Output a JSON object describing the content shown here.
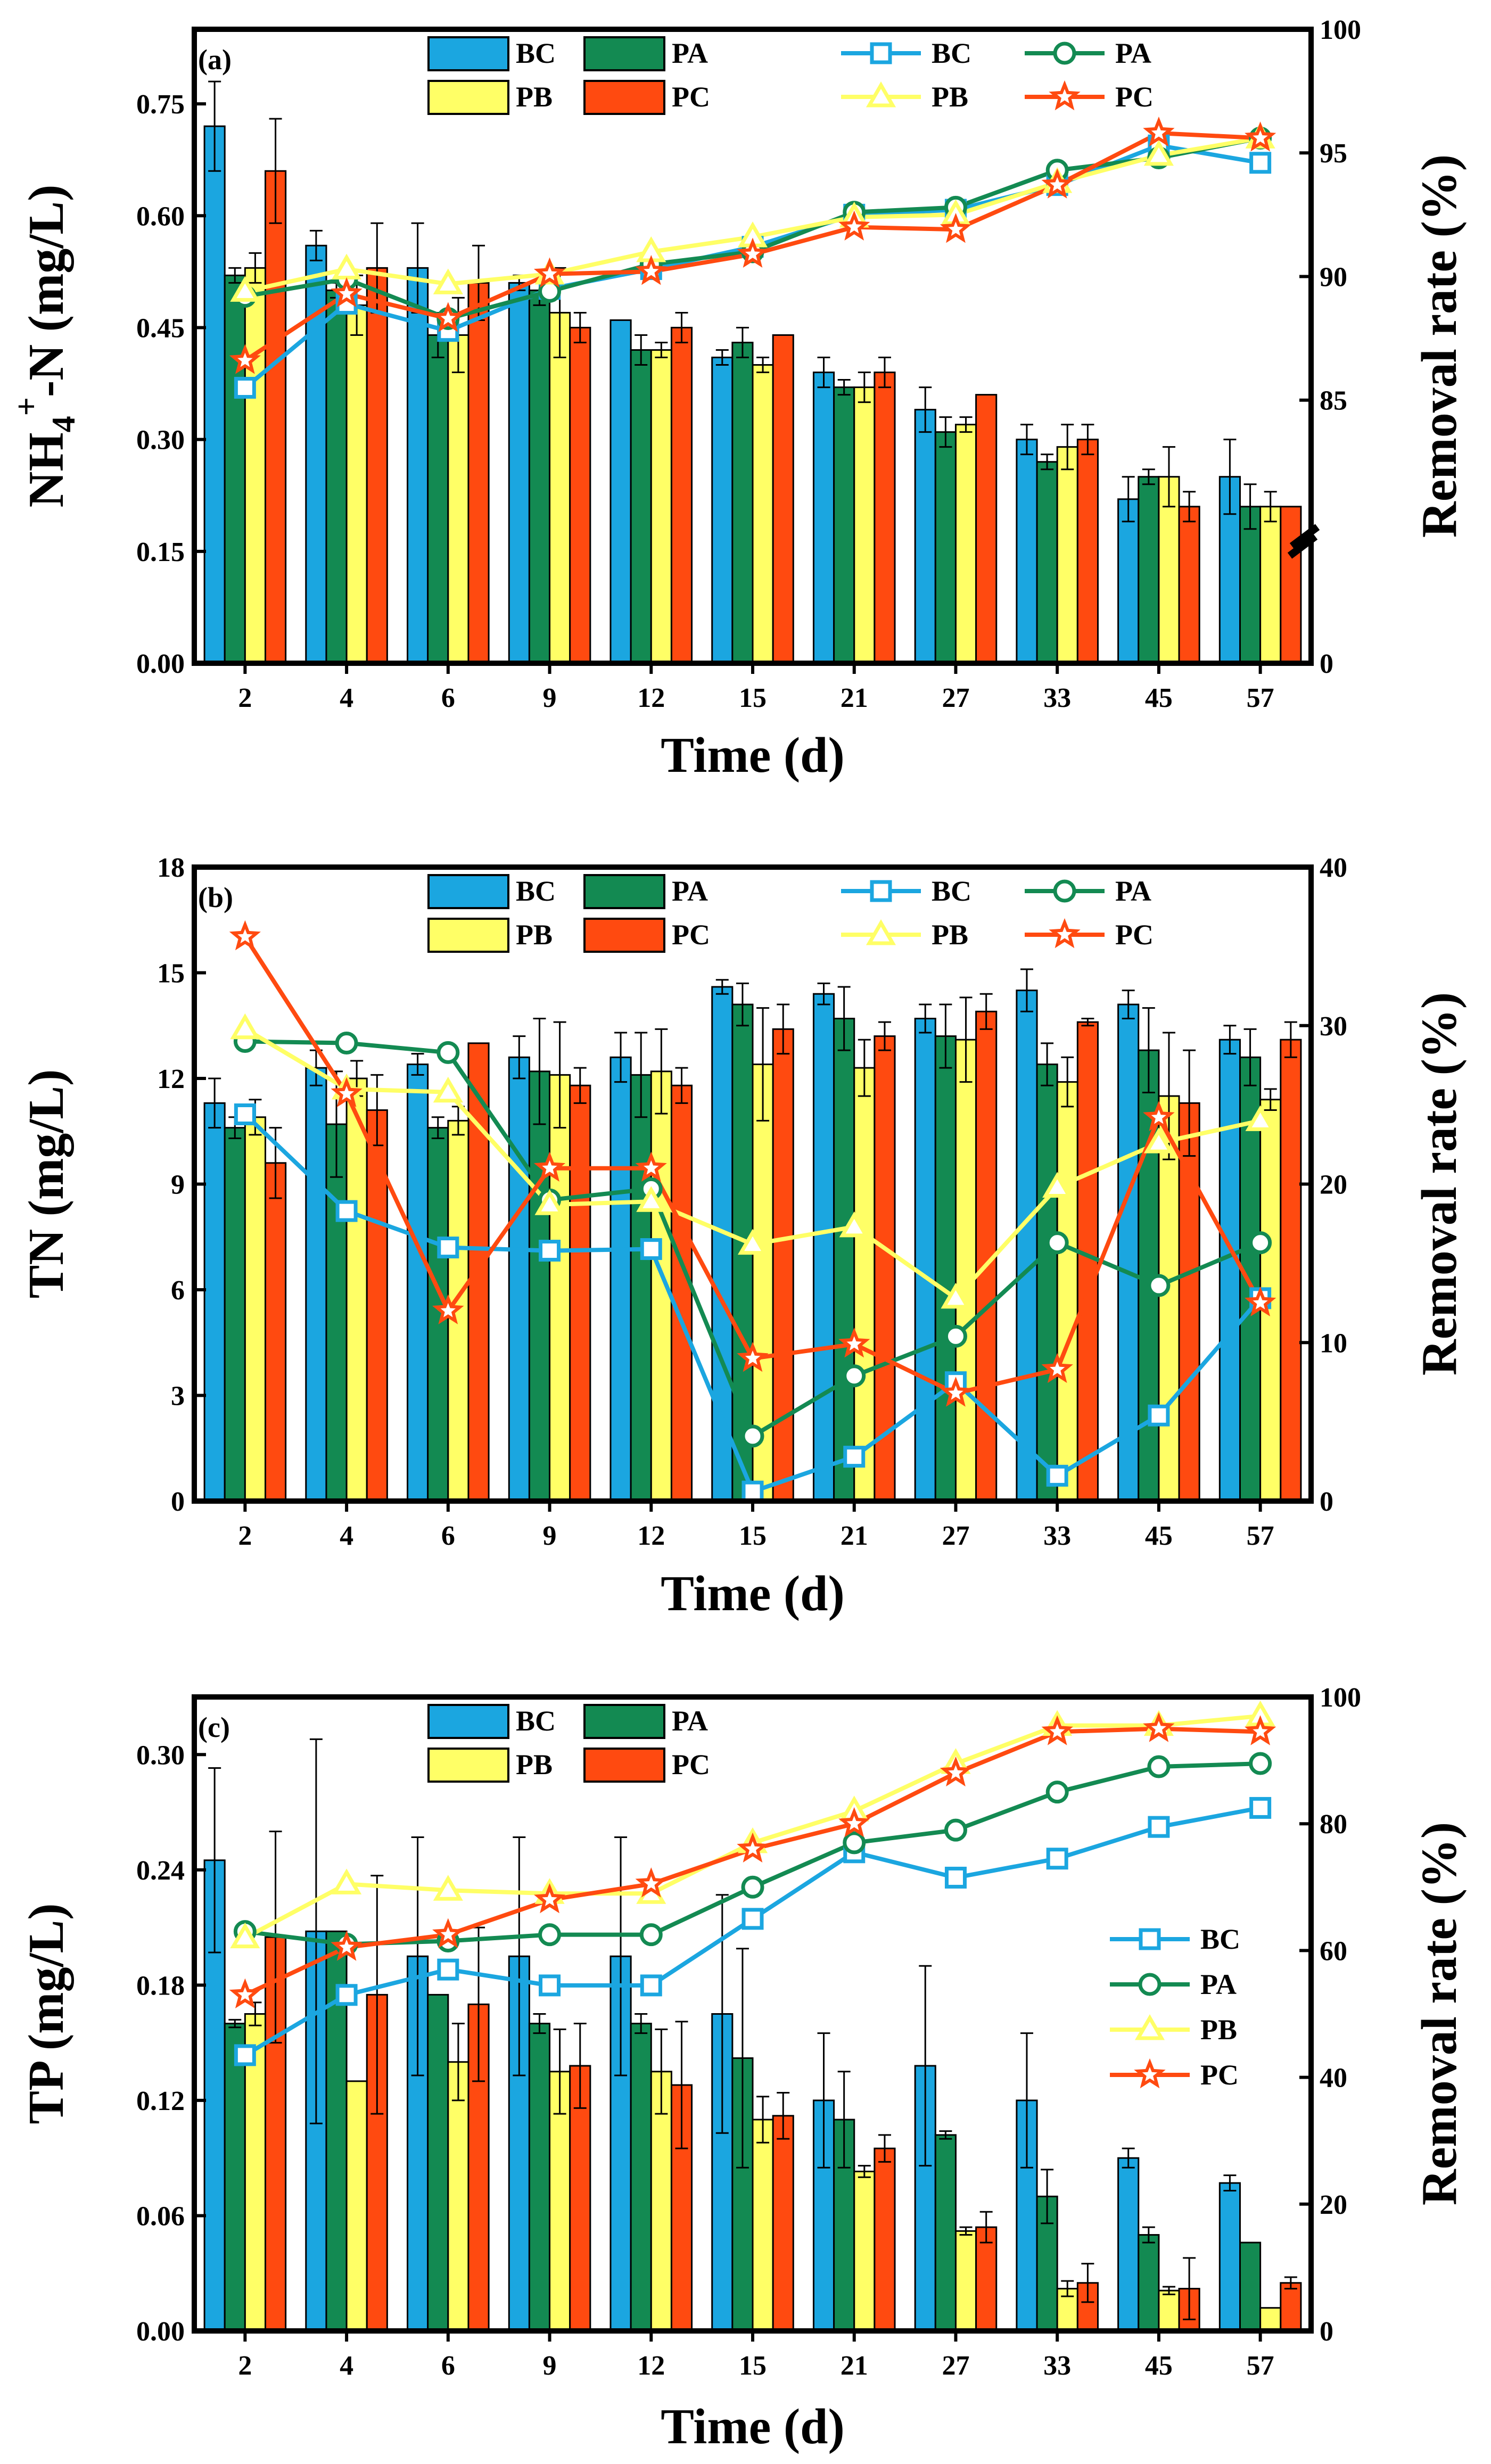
{
  "colors": {
    "BC": "#1BA6E0",
    "PA": "#138A52",
    "PB": "#FFFF66",
    "PC": "#FF4A10"
  },
  "chart_data": [
    {
      "type": "bar",
      "panel_label": "(a)",
      "xlabel": "Time (d)",
      "ylabel_main": "NH",
      "ylabel_sub": "4",
      "ylabel_sup": "+",
      "ylabel_rest": "-N (mg/L)",
      "y2label": "Removal rate (%)",
      "categories": [
        "2",
        "4",
        "6",
        "9",
        "12",
        "15",
        "21",
        "27",
        "33",
        "45",
        "57"
      ],
      "ylim": [
        0,
        0.85
      ],
      "yticks": [
        "0.00",
        "0.15",
        "0.30",
        "0.45",
        "0.60",
        "0.75"
      ],
      "y2_broken": true,
      "y2_tick_labels": [
        "0",
        "85",
        "90",
        "95",
        "100"
      ],
      "y2_break_low": 80,
      "y2_range": [
        80,
        100
      ],
      "bar_legend": [
        "BC",
        "PA",
        "PB",
        "PC"
      ],
      "line_legend": [
        "BC",
        "PA",
        "PB",
        "PC"
      ],
      "bars": [
        {
          "name": "BC",
          "values": [
            0.72,
            0.56,
            0.53,
            0.51,
            0.46,
            0.41,
            0.39,
            0.34,
            0.3,
            0.22,
            0.25
          ],
          "errors": [
            0.06,
            0.02,
            0.06,
            0.01,
            0.0,
            0.01,
            0.02,
            0.03,
            0.02,
            0.03,
            0.05
          ]
        },
        {
          "name": "PA",
          "values": [
            0.52,
            0.5,
            0.44,
            0.5,
            0.42,
            0.43,
            0.37,
            0.31,
            0.27,
            0.25,
            0.21
          ],
          "errors": [
            0.01,
            0.01,
            0.03,
            0.02,
            0.02,
            0.02,
            0.01,
            0.02,
            0.01,
            0.01,
            0.03
          ]
        },
        {
          "name": "PB",
          "values": [
            0.53,
            0.48,
            0.44,
            0.47,
            0.42,
            0.4,
            0.37,
            0.32,
            0.29,
            0.25,
            0.21
          ],
          "errors": [
            0.02,
            0.04,
            0.05,
            0.06,
            0.01,
            0.01,
            0.02,
            0.01,
            0.03,
            0.04,
            0.02
          ]
        },
        {
          "name": "PC",
          "values": [
            0.66,
            0.53,
            0.51,
            0.45,
            0.45,
            0.44,
            0.39,
            0.36,
            0.3,
            0.21,
            0.21
          ],
          "errors": [
            0.07,
            0.06,
            0.05,
            0.02,
            0.02,
            0.0,
            0.02,
            0.0,
            0.02,
            0.02,
            0.0
          ]
        }
      ],
      "lines": [
        {
          "name": "BC",
          "marker": "square",
          "values": [
            85.5,
            88.9,
            87.8,
            89.5,
            90.3,
            91.2,
            92.5,
            92.7,
            93.7,
            95.3,
            94.6
          ]
        },
        {
          "name": "PA",
          "marker": "circle",
          "values": [
            89.2,
            89.9,
            88.3,
            89.4,
            90.5,
            91.0,
            92.6,
            92.8,
            94.3,
            94.8,
            95.6
          ]
        },
        {
          "name": "PB",
          "marker": "triangle",
          "values": [
            89.4,
            90.3,
            89.7,
            90.1,
            91.0,
            91.6,
            92.4,
            92.5,
            93.8,
            94.9,
            95.6
          ]
        },
        {
          "name": "PC",
          "marker": "star",
          "values": [
            86.6,
            89.3,
            88.3,
            90.1,
            90.2,
            90.9,
            92.0,
            91.9,
            93.7,
            95.8,
            95.6
          ]
        }
      ]
    },
    {
      "type": "bar",
      "panel_label": "(b)",
      "xlabel": "Time (d)",
      "ylabel_main": "TN (mg/L)",
      "y2label": "Removal rate (%)",
      "categories": [
        "2",
        "4",
        "6",
        "9",
        "12",
        "15",
        "21",
        "27",
        "33",
        "45",
        "57"
      ],
      "ylim": [
        0,
        18
      ],
      "yticks": [
        "0",
        "3",
        "6",
        "9",
        "12",
        "15",
        "18"
      ],
      "y2lim": [
        0,
        40
      ],
      "y2ticks": [
        "0",
        "10",
        "20",
        "30",
        "40"
      ],
      "bar_legend": [
        "BC",
        "PA",
        "PB",
        "PC"
      ],
      "line_legend": [
        "BC",
        "PA",
        "PB",
        "PC"
      ],
      "bars": [
        {
          "name": "BC",
          "values": [
            11.3,
            12.3,
            12.4,
            12.6,
            12.6,
            14.6,
            14.4,
            13.7,
            14.5,
            14.1,
            13.1
          ],
          "errors": [
            0.7,
            0.5,
            0.3,
            0.6,
            0.7,
            0.2,
            0.3,
            0.4,
            0.6,
            0.4,
            0.4
          ]
        },
        {
          "name": "PA",
          "values": [
            10.6,
            10.7,
            10.6,
            12.2,
            12.1,
            14.1,
            13.7,
            13.2,
            12.4,
            12.8,
            12.6
          ],
          "errors": [
            0.3,
            1.5,
            0.3,
            1.5,
            1.2,
            0.6,
            0.9,
            0.9,
            0.6,
            1.2,
            0.8
          ]
        },
        {
          "name": "PB",
          "values": [
            10.9,
            12.0,
            10.8,
            12.1,
            12.2,
            12.4,
            12.3,
            13.1,
            11.9,
            11.5,
            11.4
          ],
          "errors": [
            0.5,
            0.5,
            0.4,
            1.5,
            1.2,
            1.6,
            0.8,
            1.2,
            0.7,
            1.8,
            0.3
          ]
        },
        {
          "name": "PC",
          "values": [
            9.6,
            11.1,
            13.0,
            11.8,
            11.8,
            13.4,
            13.2,
            13.9,
            13.6,
            11.3,
            13.1
          ],
          "errors": [
            1.0,
            1.0,
            0.0,
            0.5,
            0.5,
            0.7,
            0.4,
            0.5,
            0.1,
            1.5,
            0.5
          ]
        }
      ],
      "lines": [
        {
          "name": "BC",
          "marker": "square",
          "values": [
            24.4,
            18.3,
            16.0,
            15.8,
            15.9,
            0.6,
            2.8,
            7.5,
            1.6,
            5.4,
            12.8
          ]
        },
        {
          "name": "PA",
          "marker": "circle",
          "values": [
            29.0,
            28.9,
            28.3,
            19.0,
            19.7,
            4.1,
            7.9,
            10.4,
            16.3,
            13.6,
            16.3
          ]
        },
        {
          "name": "PB",
          "marker": "triangle",
          "values": [
            29.8,
            26.0,
            25.8,
            18.7,
            18.9,
            16.2,
            17.3,
            12.8,
            19.8,
            22.6,
            24.0
          ]
        },
        {
          "name": "PC",
          "marker": "star",
          "values": [
            35.6,
            25.7,
            12.0,
            21.0,
            21.0,
            9.0,
            9.9,
            6.8,
            8.3,
            24.2,
            12.5
          ]
        }
      ]
    },
    {
      "type": "bar",
      "panel_label": "(c)",
      "xlabel": "Time (d)",
      "ylabel_main": "TP (mg/L)",
      "y2label": "Removal rate (%)",
      "categories": [
        "2",
        "4",
        "6",
        "9",
        "12",
        "15",
        "21",
        "27",
        "33",
        "45",
        "57"
      ],
      "ylim": [
        0,
        0.33
      ],
      "yticks": [
        "0.00",
        "0.06",
        "0.12",
        "0.18",
        "0.24",
        "0.30"
      ],
      "y2lim": [
        0,
        100
      ],
      "y2ticks": [
        "0",
        "20",
        "40",
        "60",
        "80",
        "100"
      ],
      "bar_legend": [
        "BC",
        "PA",
        "PB",
        "PC"
      ],
      "line_legend": [
        "BC",
        "PA",
        "PB",
        "PC"
      ],
      "bars": [
        {
          "name": "BC",
          "values": [
            0.245,
            0.208,
            0.195,
            0.195,
            0.195,
            0.165,
            0.12,
            0.138,
            0.12,
            0.09,
            0.077
          ],
          "errors": [
            0.048,
            0.1,
            0.062,
            0.062,
            0.062,
            0.062,
            0.035,
            0.052,
            0.035,
            0.005,
            0.004
          ]
        },
        {
          "name": "PA",
          "values": [
            0.16,
            0.208,
            0.175,
            0.16,
            0.16,
            0.142,
            0.11,
            0.102,
            0.07,
            0.05,
            0.046
          ],
          "errors": [
            0.002,
            0.0,
            0.0,
            0.005,
            0.005,
            0.057,
            0.025,
            0.002,
            0.014,
            0.004,
            0.0
          ]
        },
        {
          "name": "PB",
          "values": [
            0.165,
            0.13,
            0.14,
            0.135,
            0.135,
            0.11,
            0.083,
            0.052,
            0.022,
            0.021,
            0.012
          ],
          "errors": [
            0.006,
            0.0,
            0.02,
            0.022,
            0.022,
            0.012,
            0.003,
            0.002,
            0.004,
            0.002,
            0.0
          ]
        },
        {
          "name": "PC",
          "values": [
            0.205,
            0.175,
            0.17,
            0.138,
            0.128,
            0.112,
            0.095,
            0.054,
            0.025,
            0.022,
            0.025
          ],
          "errors": [
            0.055,
            0.062,
            0.04,
            0.022,
            0.033,
            0.012,
            0.007,
            0.008,
            0.01,
            0.016,
            0.003
          ]
        }
      ],
      "lines": [
        {
          "name": "BC",
          "marker": "square",
          "values": [
            43.5,
            53.0,
            57.0,
            54.5,
            54.5,
            65.0,
            75.5,
            71.5,
            74.5,
            79.5,
            82.5
          ]
        },
        {
          "name": "PA",
          "marker": "circle",
          "values": [
            63.0,
            61.0,
            61.5,
            62.5,
            62.5,
            70.0,
            77.0,
            79.0,
            85.0,
            89.0,
            89.5
          ]
        },
        {
          "name": "PB",
          "marker": "triangle",
          "values": [
            62.0,
            70.5,
            69.5,
            69.0,
            69.0,
            77.0,
            82.0,
            89.5,
            95.5,
            95.5,
            97.0
          ]
        },
        {
          "name": "PC",
          "marker": "star",
          "values": [
            53.0,
            60.5,
            62.5,
            68.0,
            70.5,
            76.0,
            80.0,
            88.0,
            94.5,
            95.0,
            94.5
          ]
        }
      ]
    }
  ]
}
